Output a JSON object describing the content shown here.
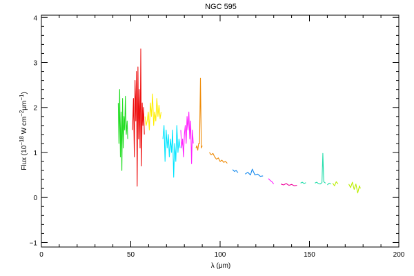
{
  "chart_data": {
    "type": "line",
    "title": "NGC 595",
    "xlabel": "λ (μm)",
    "ylabel_parts": [
      "Flux (10",
      "−18",
      " W cm",
      "−2",
      "μm",
      "−1",
      ")"
    ],
    "xlim": [
      0,
      200
    ],
    "ylim": [
      -1.1,
      4.05
    ],
    "xticks": [
      0,
      50,
      100,
      150,
      200
    ],
    "xtick_labels": [
      "0",
      "50",
      "100",
      "150",
      "200"
    ],
    "yticks": [
      -1,
      0,
      1,
      2,
      3,
      4
    ],
    "ytick_labels": [
      "−1",
      "0",
      "1",
      "2",
      "3",
      "4"
    ],
    "grid": false,
    "series": [
      {
        "color": "#22dd22",
        "x": [
          43.0,
          43.4,
          43.8,
          44.2,
          44.6,
          45.0,
          45.4,
          45.8,
          46.2,
          46.6,
          47.0,
          47.5,
          48.0,
          48.3
        ],
        "y": [
          2.1,
          1.2,
          2.4,
          0.9,
          1.9,
          0.6,
          2.2,
          1.1,
          1.8,
          1.5,
          2.25,
          1.4,
          1.7,
          1.3
        ]
      },
      {
        "color": "#ee1111",
        "x": [
          51.0,
          51.5,
          52.0,
          52.4,
          52.8,
          53.2,
          53.6,
          54.0,
          54.4,
          54.8,
          55.2,
          55.6,
          56.0,
          56.4,
          56.8,
          57.2,
          57.6
        ],
        "y": [
          1.5,
          2.2,
          0.9,
          2.6,
          1.7,
          2.8,
          0.25,
          2.9,
          1.3,
          2.4,
          1.1,
          3.3,
          0.7,
          2.1,
          1.6,
          2.0,
          1.4
        ]
      },
      {
        "color": "#ffee00",
        "x": [
          58.0,
          58.6,
          59.2,
          59.8,
          60.4,
          61.0,
          61.6,
          62.2,
          62.8,
          63.4,
          64.0,
          64.6,
          65.2,
          65.8,
          66.4,
          67.0
        ],
        "y": [
          1.8,
          1.6,
          1.7,
          1.9,
          1.5,
          2.1,
          1.8,
          2.3,
          1.6,
          1.9,
          1.7,
          2.2,
          1.8,
          2.05,
          1.75,
          1.9
        ]
      },
      {
        "color": "#00e5ff",
        "x": [
          68.0,
          68.6,
          69.2,
          69.8,
          70.4,
          71.0,
          71.6,
          72.2,
          72.8,
          73.4,
          74.0,
          74.6,
          75.2,
          75.8,
          76.4,
          77.0,
          77.6
        ],
        "y": [
          1.3,
          1.6,
          0.8,
          1.5,
          1.1,
          1.4,
          0.9,
          1.3,
          1.0,
          1.5,
          0.45,
          1.2,
          0.8,
          1.6,
          1.0,
          1.3,
          1.1
        ]
      },
      {
        "color": "#ff22ff",
        "x": [
          78.0,
          78.5,
          79.0,
          79.5,
          80.0,
          80.5,
          81.0,
          81.5,
          82.0,
          82.5,
          83.0,
          83.5,
          84.0,
          84.5,
          85.0
        ],
        "y": [
          1.5,
          1.1,
          1.3,
          0.9,
          1.4,
          1.6,
          1.2,
          1.8,
          1.5,
          1.9,
          1.3,
          1.7,
          0.75,
          1.5,
          1.2
        ]
      },
      {
        "color": "#ee8800",
        "x": [
          86.5,
          87.0,
          87.5,
          88.0,
          88.5,
          89.0,
          89.5,
          90.0
        ],
        "y": [
          1.1,
          1.15,
          1.05,
          1.2,
          1.2,
          2.65,
          1.1,
          1.15
        ]
      },
      {
        "color": "#ee8800",
        "x": [
          94.0,
          95.0,
          96.0,
          97.0,
          98.0,
          99.0,
          100.0,
          101.0,
          102.0,
          103.0,
          104.0
        ],
        "y": [
          1.0,
          0.95,
          0.98,
          0.9,
          0.85,
          0.88,
          0.8,
          0.83,
          0.78,
          0.8,
          0.76
        ]
      },
      {
        "color": "#1188ee",
        "x": [
          107.0,
          108.0,
          109.0,
          110.0
        ],
        "y": [
          0.62,
          0.58,
          0.6,
          0.55
        ]
      },
      {
        "color": "#1188ee",
        "x": [
          114.0,
          115.5,
          117.0,
          118.0,
          119.5,
          121.0,
          122.5,
          124.0
        ],
        "y": [
          0.52,
          0.56,
          0.5,
          0.63,
          0.5,
          0.52,
          0.47,
          0.48
        ]
      },
      {
        "color": "#ff22ff",
        "x": [
          127.0,
          128.0,
          129.0,
          130.0
        ],
        "y": [
          0.42,
          0.38,
          0.35,
          0.3
        ]
      },
      {
        "color": "#ee0099",
        "x": [
          134.0,
          135.5,
          137.0,
          138.5,
          140.0,
          141.5,
          143.0
        ],
        "y": [
          0.3,
          0.28,
          0.31,
          0.27,
          0.29,
          0.26,
          0.27
        ]
      },
      {
        "color": "#22ddaa",
        "x": [
          145.0,
          146.0,
          147.0,
          148.0
        ],
        "y": [
          0.32,
          0.34,
          0.31,
          0.33
        ]
      },
      {
        "color": "#22ddaa",
        "x": [
          153.0,
          154.0,
          155.0,
          156.0,
          157.0,
          157.5,
          158.0,
          159.0
        ],
        "y": [
          0.32,
          0.34,
          0.31,
          0.3,
          0.33,
          0.98,
          0.35,
          0.32
        ]
      },
      {
        "color": "#22ddaa",
        "x": [
          160.0,
          161.0,
          162.0
        ],
        "y": [
          0.28,
          0.32,
          0.3
        ]
      },
      {
        "color": "#bbee00",
        "x": [
          163.0,
          164.0,
          165.0,
          166.0
        ],
        "y": [
          0.32,
          0.26,
          0.35,
          0.3
        ]
      },
      {
        "color": "#bbee00",
        "x": [
          172.0,
          173.0,
          174.0,
          175.0,
          176.0,
          177.0,
          178.0,
          178.5
        ],
        "y": [
          0.3,
          0.22,
          0.34,
          0.18,
          0.3,
          0.1,
          0.26,
          0.2
        ]
      }
    ]
  }
}
